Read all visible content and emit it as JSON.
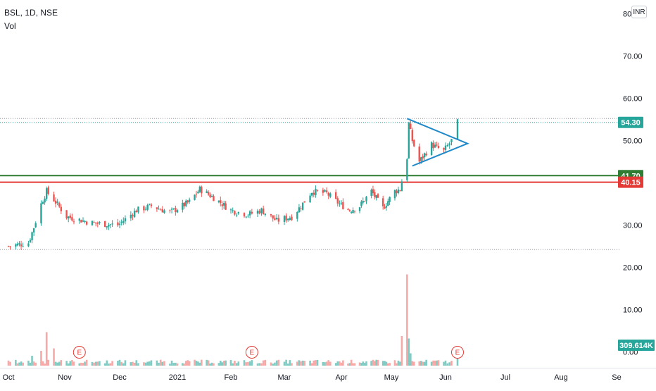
{
  "header": {
    "symbol_line": "BSL, 1D, NSE",
    "volume_label": "Vol"
  },
  "currency_button": "INR",
  "colors": {
    "up": "#26a69a",
    "down": "#ef5350",
    "vol_up": "#80cbc4",
    "vol_down": "#f7a9a7",
    "support_green": "#2e7d32",
    "resistance_red": "#e53935",
    "triangle": "#1e88c8",
    "grid_dotted": "#9598a1",
    "last_price_line": "#26a69a"
  },
  "chart_data": {
    "type": "candlestick",
    "title": "BSL, 1D, NSE",
    "x_tick_labels": [
      "Oct",
      "Nov",
      "Dec",
      "2021",
      "Feb",
      "Mar",
      "Apr",
      "May",
      "Jun",
      "Jul",
      "Aug",
      "Se"
    ],
    "y_tick_labels": [
      "80",
      "70.00",
      "60.00",
      "50.00",
      "30.00",
      "20.00",
      "10.00",
      "0.00"
    ],
    "ylim": [
      0,
      82
    ],
    "price_tags": [
      {
        "label": "54.30",
        "value": 54.3,
        "kind": "last"
      },
      {
        "label": "41.70",
        "value": 41.7,
        "kind": "green-line"
      },
      {
        "label": "40.15",
        "value": 40.15,
        "kind": "red-line"
      }
    ],
    "volume_tag": "309.614K",
    "horizontal_lines": [
      {
        "value": 41.7,
        "color": "green",
        "style": "solid"
      },
      {
        "value": 40.15,
        "color": "red",
        "style": "solid"
      },
      {
        "value": 55.2,
        "color": "grey",
        "style": "dotted"
      },
      {
        "value": 54.3,
        "color": "teal",
        "style": "dotted"
      },
      {
        "value": 24.2,
        "color": "grey",
        "style": "dotted"
      }
    ],
    "triangle_pattern": {
      "apex_date": "2021-06-12",
      "apex_value": 49.3,
      "upper_start": {
        "date": "2021-05-10",
        "value": 55.2
      },
      "lower_start": {
        "date": "2021-05-13",
        "value": 44.0
      }
    },
    "earnings_markers": [
      {
        "label": "E",
        "date": "2020-11-09"
      },
      {
        "label": "E",
        "date": "2021-02-12"
      },
      {
        "label": "E",
        "date": "2021-06-07"
      }
    ],
    "series": [
      {
        "name": "price",
        "waypoints": [
          [
            "2020-10-01",
            25.0
          ],
          [
            "2020-10-12",
            25.8
          ],
          [
            "2020-10-15",
            29.5
          ],
          [
            "2020-10-19",
            35.0
          ],
          [
            "2020-10-22",
            38.0
          ],
          [
            "2020-10-26",
            36.0
          ],
          [
            "2020-11-02",
            32.0
          ],
          [
            "2020-11-16",
            30.5
          ],
          [
            "2020-11-30",
            30.0
          ],
          [
            "2020-12-10",
            33.5
          ],
          [
            "2020-12-18",
            34.5
          ],
          [
            "2020-12-28",
            33.0
          ],
          [
            "2021-01-08",
            35.5
          ],
          [
            "2021-01-14",
            38.5
          ],
          [
            "2021-01-22",
            36.5
          ],
          [
            "2021-02-01",
            33.5
          ],
          [
            "2021-02-10",
            32.5
          ],
          [
            "2021-02-17",
            33.5
          ],
          [
            "2021-02-25",
            31.0
          ],
          [
            "2021-03-05",
            32.0
          ],
          [
            "2021-03-10",
            34.5
          ],
          [
            "2021-03-16",
            38.0
          ],
          [
            "2021-03-24",
            37.5
          ],
          [
            "2021-03-31",
            35.0
          ],
          [
            "2021-04-06",
            33.5
          ],
          [
            "2021-04-12",
            34.5
          ],
          [
            "2021-04-19",
            38.0
          ],
          [
            "2021-04-26",
            34.0
          ],
          [
            "2021-05-03",
            38.0
          ],
          [
            "2021-05-06",
            38.5
          ],
          [
            "2021-05-07",
            40.5
          ],
          [
            "2021-05-10",
            46.0
          ],
          [
            "2021-05-11",
            54.0
          ],
          [
            "2021-05-13",
            50.0
          ],
          [
            "2021-05-17",
            45.0
          ],
          [
            "2021-05-24",
            49.0
          ],
          [
            "2021-05-31",
            47.5
          ],
          [
            "2021-06-04",
            50.0
          ],
          [
            "2021-06-07",
            54.3
          ]
        ]
      },
      {
        "name": "Vol",
        "spikes": [
          [
            "2020-10-14",
            2.0
          ],
          [
            "2020-10-19",
            3.0
          ],
          [
            "2020-10-22",
            6.8
          ],
          [
            "2020-10-26",
            3.5
          ],
          [
            "2021-05-07",
            6.0
          ],
          [
            "2021-05-10",
            18.5
          ],
          [
            "2021-05-11",
            5.5
          ],
          [
            "2021-05-12",
            2.5
          ],
          [
            "2021-06-07",
            1.8
          ]
        ],
        "baseline": 0.4
      }
    ]
  }
}
